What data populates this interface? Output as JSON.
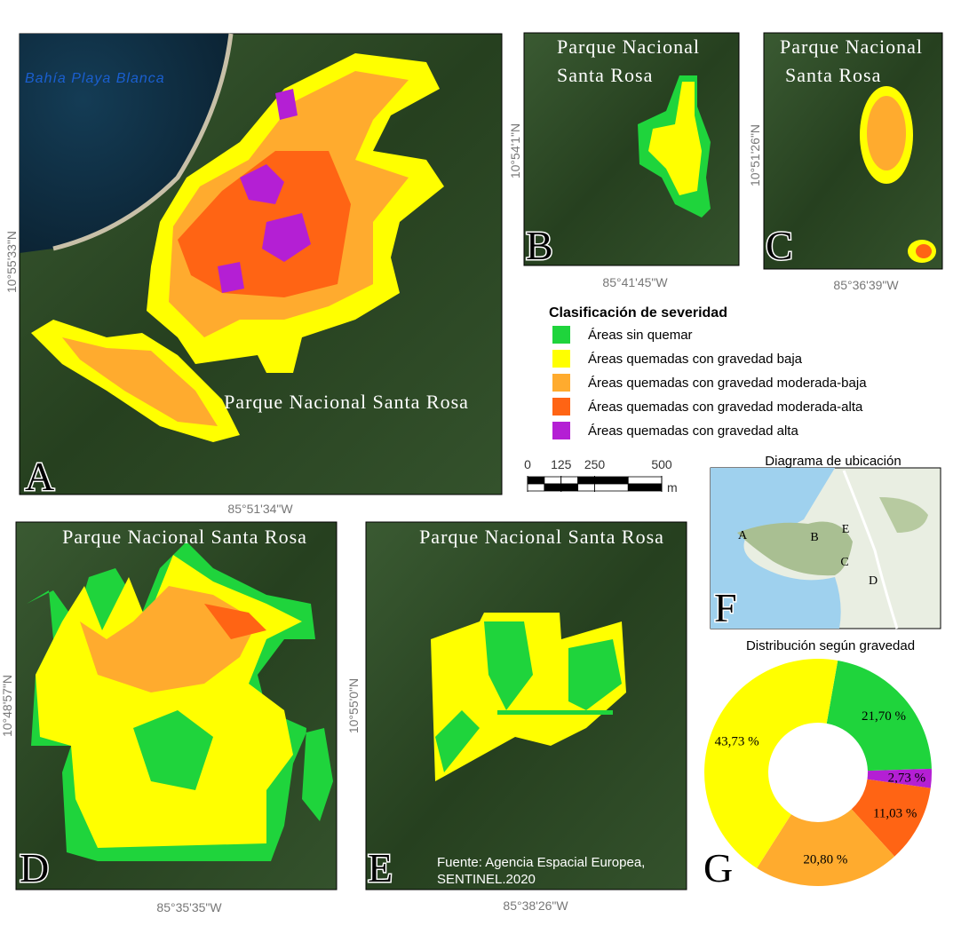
{
  "panels": [
    {
      "letter": "A",
      "title_lines": [
        "Parque Nacional Santa Rosa"
      ],
      "lat": "10°55'33\"N",
      "lon": "85°51'34\"W",
      "place": "Bahía Playa Blanca"
    },
    {
      "letter": "B",
      "title_lines": [
        "Parque Nacional",
        "Santa Rosa"
      ],
      "lat": "10°54'1\"N",
      "lon": "85°41'45\"W"
    },
    {
      "letter": "C",
      "title_lines": [
        "Parque Nacional",
        "Santa Rosa"
      ],
      "lat": "10°51'26\"N",
      "lon": "85°36'39\"W"
    },
    {
      "letter": "D",
      "title_lines": [
        "Parque Nacional Santa Rosa"
      ],
      "lat": "10°48'57\"N",
      "lon": "85°35'35\"W"
    },
    {
      "letter": "E",
      "title_lines": [
        "Parque Nacional Santa Rosa"
      ],
      "lat": "10°55'0\"N",
      "lon": "85°38'26\"W",
      "source_lines": [
        "Fuente: Agencia Espacial Europea,",
        "SENTINEL.2020"
      ]
    }
  ],
  "legend": {
    "title": "Clasificación de severidad",
    "items": [
      {
        "label": "Áreas sin quemar",
        "color": "#1fd43c"
      },
      {
        "label": "Áreas quemadas con gravedad baja",
        "color": "#ffff00"
      },
      {
        "label": "Áreas quemadas con gravedad moderada-baja",
        "color": "#ffab2e"
      },
      {
        "label": "Áreas quemadas con gravedad moderada-alta",
        "color": "#ff6414"
      },
      {
        "label": "Áreas quemadas con gravedad alta",
        "color": "#b41fd4"
      }
    ]
  },
  "scale": {
    "ticks": [
      0,
      125,
      250,
      500
    ],
    "unit": "m"
  },
  "location_diagram": {
    "title": "Diagrama de ubicación",
    "letter": "F",
    "labels": [
      "A",
      "B",
      "E",
      "C",
      "D"
    ]
  },
  "chart_data": {
    "type": "donut",
    "title": "Distribución según gravedad",
    "letter": "G",
    "values": [
      21.7,
      2.73,
      11.03,
      20.8,
      43.73
    ],
    "value_labels": [
      "21,70 %",
      "2,73 %",
      "11,03 %",
      "20,80 %",
      "43,73 %"
    ],
    "colors": [
      "#1fd43c",
      "#b41fd4",
      "#ff6414",
      "#ffab2e",
      "#ffff00"
    ]
  }
}
